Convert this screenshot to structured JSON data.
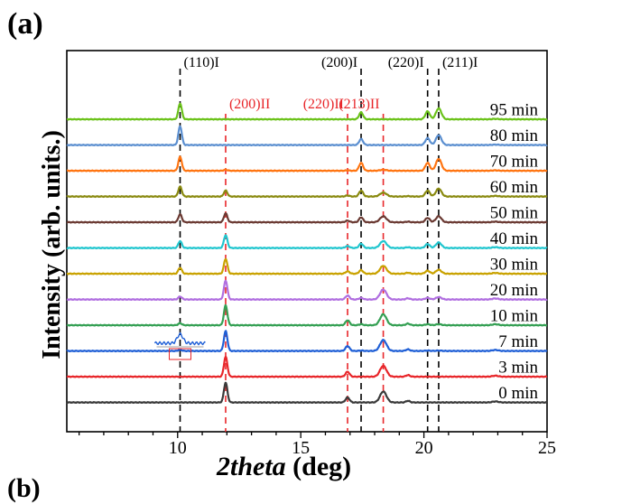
{
  "panel_label": "(a)",
  "next_panel_label": "(b)",
  "chart_data": {
    "type": "line",
    "title": "",
    "xlabel": "2theta (deg)",
    "xlabel_parts": {
      "italic": "2theta",
      "rest": " (deg)"
    },
    "ylabel": "Intensity (arb. units.)",
    "xlim": [
      5.5,
      25
    ],
    "xticks": [
      10,
      15,
      20,
      25
    ],
    "yticks_shown": false,
    "phase_I_lines": [
      {
        "label": "(110)I",
        "x": 10.1,
        "color": "#000000"
      },
      {
        "label": "(200)I",
        "x": 17.45,
        "color": "#000000"
      },
      {
        "label": "(220)I",
        "x": 20.15,
        "color": "#000000"
      },
      {
        "label": "(211)I",
        "x": 20.6,
        "color": "#000000"
      }
    ],
    "phase_II_lines": [
      {
        "label": "(200)II",
        "x": 11.95,
        "color": "#e8262a"
      },
      {
        "label": "(220)II",
        "x": 16.9,
        "color": "#e8262a"
      },
      {
        "label": "(213)II",
        "x": 18.35,
        "color": "#e8262a"
      }
    ],
    "series": [
      {
        "name": "0 min",
        "color": "#3a3a3a",
        "peaks": {
          "10.1": 0.0,
          "11.95": 1.0,
          "16.9": 0.25,
          "17.45": 0.0,
          "18.35": 0.55,
          "20.15": 0.0,
          "20.6": 0.0,
          "19.35": 0.08,
          "22.9": 0.05
        }
      },
      {
        "name": "3 min",
        "color": "#e8262a",
        "peaks": {
          "10.1": 0.0,
          "11.95": 1.0,
          "16.9": 0.25,
          "17.45": 0.0,
          "18.35": 0.55,
          "20.15": 0.0,
          "20.6": 0.0,
          "19.35": 0.08,
          "22.9": 0.05
        }
      },
      {
        "name": "7 min",
        "color": "#1f5fd6",
        "peaks": {
          "10.1": 0.06,
          "11.95": 1.0,
          "16.9": 0.25,
          "17.45": 0.02,
          "18.35": 0.55,
          "20.15": 0.02,
          "20.6": 0.02,
          "19.35": 0.08,
          "22.9": 0.05
        }
      },
      {
        "name": "10 min",
        "color": "#35a054",
        "peaks": {
          "10.1": 0.1,
          "11.95": 1.0,
          "16.9": 0.25,
          "17.45": 0.05,
          "18.35": 0.55,
          "20.15": 0.05,
          "20.6": 0.05,
          "19.35": 0.08,
          "22.9": 0.05
        }
      },
      {
        "name": "20 min",
        "color": "#b06ee0",
        "peaks": {
          "10.1": 0.15,
          "11.95": 0.95,
          "16.9": 0.2,
          "17.45": 0.08,
          "18.35": 0.5,
          "20.15": 0.08,
          "20.6": 0.12,
          "19.35": 0.06,
          "22.9": 0.05
        }
      },
      {
        "name": "30 min",
        "color": "#c9a200",
        "peaks": {
          "10.1": 0.3,
          "11.95": 0.75,
          "16.9": 0.12,
          "17.45": 0.18,
          "18.35": 0.4,
          "20.15": 0.15,
          "20.6": 0.2,
          "19.35": 0.05,
          "22.9": 0.04
        }
      },
      {
        "name": "40 min",
        "color": "#21c6cf",
        "peaks": {
          "10.1": 0.35,
          "11.95": 0.65,
          "16.9": 0.1,
          "17.45": 0.22,
          "18.35": 0.35,
          "20.15": 0.2,
          "20.6": 0.28,
          "19.35": 0.04,
          "22.9": 0.04
        }
      },
      {
        "name": "50 min",
        "color": "#6b3a33",
        "peaks": {
          "10.1": 0.4,
          "11.95": 0.45,
          "16.9": 0.08,
          "17.45": 0.25,
          "18.35": 0.3,
          "20.15": 0.22,
          "20.6": 0.3,
          "19.35": 0.03,
          "22.9": 0.03
        }
      },
      {
        "name": "60 min",
        "color": "#8a8a10",
        "peaks": {
          "10.1": 0.5,
          "11.95": 0.3,
          "16.9": 0.05,
          "17.45": 0.3,
          "18.35": 0.2,
          "20.15": 0.3,
          "20.6": 0.4,
          "19.35": 0.02,
          "22.9": 0.03
        }
      },
      {
        "name": "70 min",
        "color": "#ff7410",
        "peaks": {
          "10.1": 0.7,
          "11.95": 0.05,
          "16.9": 0.02,
          "17.45": 0.4,
          "18.35": 0.05,
          "20.15": 0.4,
          "20.6": 0.6,
          "19.35": 0.0,
          "22.9": 0.02
        }
      },
      {
        "name": "80 min",
        "color": "#5b8fd0",
        "peaks": {
          "10.1": 0.95,
          "11.95": 0.0,
          "16.9": 0.0,
          "17.45": 0.3,
          "18.35": 0.0,
          "20.15": 0.35,
          "20.6": 0.5,
          "19.35": 0.0,
          "22.9": 0.02
        }
      },
      {
        "name": "95 min",
        "color": "#6bc21a",
        "peaks": {
          "10.1": 0.8,
          "11.95": 0.0,
          "16.9": 0.0,
          "17.45": 0.35,
          "18.35": 0.0,
          "20.15": 0.4,
          "20.6": 0.55,
          "19.35": 0.0,
          "22.9": 0.02
        }
      }
    ],
    "inset": {
      "description_series": "7 min",
      "center_x": 10.1
    }
  }
}
